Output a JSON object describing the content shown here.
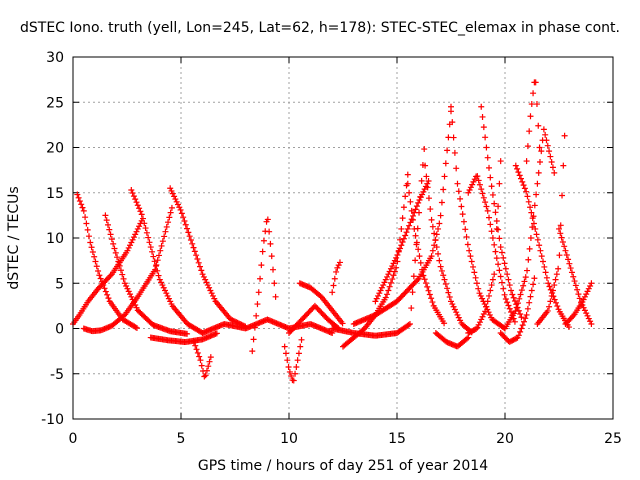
{
  "chart_data": {
    "type": "scatter",
    "title": "dSTEC Iono. truth (yell, Lon=245, Lat=62, h=178): STEC-STEC_elemax in phase cont.",
    "xlabel": "GPS time / hours of day 251 of year 2014",
    "ylabel": "dSTEC  / TECUs",
    "xlim": [
      0,
      25
    ],
    "ylim": [
      -10,
      30
    ],
    "xticks": [
      0,
      5,
      10,
      15,
      20,
      25
    ],
    "yticks": [
      -10,
      -5,
      0,
      5,
      10,
      15,
      20,
      25,
      30
    ],
    "grid": true,
    "marker": "+",
    "series": [
      {
        "color": "#ff0000",
        "tracks": [
          {
            "x": [
              0.0,
              0.3,
              0.7,
              1.2,
              1.8,
              2.5,
              3.2
            ],
            "y": [
              0.5,
              1.5,
              3.0,
              4.5,
              6.0,
              8.5,
              12.0
            ]
          },
          {
            "x": [
              0.2,
              0.5,
              0.8,
              1.2,
              1.7,
              2.3,
              3.0
            ],
            "y": [
              14.8,
              13.0,
              9.5,
              6.0,
              3.0,
              1.0,
              0.0
            ]
          },
          {
            "x": [
              0.5,
              0.9,
              1.3,
              1.8,
              2.4,
              3.0,
              3.8,
              4.6
            ],
            "y": [
              0.0,
              -0.3,
              -0.2,
              0.3,
              1.5,
              3.5,
              6.5,
              13.5
            ]
          },
          {
            "x": [
              1.5,
              1.9,
              2.4,
              3.0,
              3.7,
              4.5,
              5.3
            ],
            "y": [
              12.5,
              9.0,
              5.0,
              2.0,
              0.4,
              -0.3,
              -0.6
            ]
          },
          {
            "x": [
              2.7,
              3.2,
              3.6,
              4.0,
              4.6,
              5.3,
              6.0
            ],
            "y": [
              15.3,
              12.5,
              9.0,
              5.5,
              2.5,
              0.5,
              -0.5
            ]
          },
          {
            "x": [
              4.5,
              5.0,
              5.5,
              6.0,
              6.6,
              7.3,
              8.0
            ],
            "y": [
              15.5,
              13.0,
              9.5,
              6.0,
              3.0,
              1.0,
              0.2
            ]
          },
          {
            "x": [
              3.6,
              4.4,
              5.2,
              6.0,
              6.7
            ],
            "y": [
              -1.0,
              -1.3,
              -1.5,
              -1.2,
              -0.5
            ]
          },
          {
            "x": [
              5.6,
              5.9,
              6.1,
              6.4
            ],
            "y": [
              -1.5,
              -3.5,
              -5.5,
              -3.0
            ]
          },
          {
            "x": [
              8.3,
              8.6,
              8.8,
              9.0,
              9.2,
              9.4
            ],
            "y": [
              -2.5,
              4.0,
              9.0,
              12.5,
              8.0,
              3.0
            ]
          },
          {
            "x": [
              9.8,
              10.0,
              10.2,
              10.4,
              10.6
            ],
            "y": [
              -2.0,
              -4.5,
              -6.0,
              -3.5,
              -1.0
            ]
          },
          {
            "x": [
              10.0,
              10.6,
              11.2,
              11.8,
              12.3
            ],
            "y": [
              -0.5,
              1.0,
              2.5,
              1.0,
              0.0
            ]
          },
          {
            "x": [
              10.5,
              11.0,
              11.5,
              12.0,
              12.5
            ],
            "y": [
              5.0,
              4.5,
              3.5,
              2.0,
              0.5
            ]
          },
          {
            "x": [
              12.0,
              12.2,
              12.4
            ],
            "y": [
              4.0,
              6.5,
              7.5
            ]
          },
          {
            "x": [
              12.5,
              13.0,
              13.5,
              14.0,
              14.5,
              15.0,
              15.5
            ],
            "y": [
              -2.0,
              -1.0,
              0.0,
              1.5,
              3.5,
              7.0,
              17.0
            ]
          },
          {
            "x": [
              12.0,
              13.0,
              14.0,
              15.0,
              15.6,
              16.3
            ],
            "y": [
              0.0,
              -0.5,
              -0.8,
              -0.5,
              0.5,
              21.0
            ]
          },
          {
            "x": [
              13.0,
              14.0,
              15.0,
              16.0,
              16.6,
              17.0,
              17.5
            ],
            "y": [
              0.5,
              1.5,
              3.0,
              5.5,
              8.0,
              12.0,
              24.0
            ]
          },
          {
            "x": [
              14.0,
              14.5,
              15.0,
              15.5,
              16.0,
              16.5
            ],
            "y": [
              3.0,
              5.5,
              8.0,
              11.0,
              14.0,
              16.5
            ]
          },
          {
            "x": [
              15.5,
              15.8,
              16.2,
              16.7,
              17.2
            ],
            "y": [
              16.0,
              11.0,
              6.0,
              2.5,
              0.5
            ]
          },
          {
            "x": [
              16.3,
              16.6,
              17.0,
              17.5,
              18.0,
              18.5
            ],
            "y": [
              18.0,
              12.0,
              7.0,
              3.0,
              0.5,
              -0.5
            ]
          },
          {
            "x": [
              16.8,
              17.3,
              17.8,
              18.3
            ],
            "y": [
              -0.5,
              -1.5,
              -2.0,
              -1.0
            ]
          },
          {
            "x": [
              17.5,
              17.8,
              18.3,
              18.8,
              19.4,
              20.0
            ],
            "y": [
              24.5,
              16.0,
              9.0,
              4.0,
              1.0,
              0.0
            ]
          },
          {
            "x": [
              18.3,
              18.7,
              19.1,
              19.5,
              19.8
            ],
            "y": [
              -0.5,
              0.0,
              2.0,
              6.0,
              18.5
            ]
          },
          {
            "x": [
              18.3,
              18.7,
              19.2,
              19.6,
              20.0,
              20.5
            ],
            "y": [
              15.0,
              17.0,
              13.0,
              8.0,
              3.5,
              0.5
            ]
          },
          {
            "x": [
              18.9,
              19.3,
              19.8,
              20.3,
              20.8
            ],
            "y": [
              24.5,
              17.0,
              9.0,
              4.0,
              1.0
            ]
          },
          {
            "x": [
              19.8,
              20.2,
              20.6,
              21.0,
              21.4
            ],
            "y": [
              -0.5,
              -1.5,
              -1.0,
              1.5,
              6.0
            ]
          },
          {
            "x": [
              20.0,
              20.5,
              21.0,
              21.4,
              21.8,
              22.3
            ],
            "y": [
              0.0,
              2.0,
              6.0,
              14.0,
              22.0,
              17.0
            ]
          },
          {
            "x": [
              20.5,
              21.0,
              21.5,
              22.0,
              22.5,
              23.0
            ],
            "y": [
              18.0,
              15.0,
              10.0,
              5.0,
              2.0,
              0.0
            ]
          },
          {
            "x": [
              21.0,
              21.2,
              21.4,
              21.6
            ],
            "y": [
              18.5,
              24.0,
              28.0,
              20.0
            ]
          },
          {
            "x": [
              21.5,
              22.0,
              22.5,
              22.8
            ],
            "y": [
              0.5,
              2.0,
              7.0,
              23.5
            ]
          },
          {
            "x": [
              22.5,
              23.0,
              23.5,
              24.0
            ],
            "y": [
              11.0,
              7.0,
              3.0,
              0.5
            ]
          },
          {
            "x": [
              22.8,
              23.2,
              23.6,
              24.0
            ],
            "y": [
              0.5,
              1.5,
              3.0,
              5.0
            ]
          },
          {
            "x": [
              6.0,
              7.0,
              8.0,
              9.0,
              10.0,
              11.0,
              12.0
            ],
            "y": [
              -0.5,
              0.5,
              0.0,
              1.0,
              0.0,
              0.5,
              -0.5
            ]
          }
        ]
      }
    ]
  }
}
